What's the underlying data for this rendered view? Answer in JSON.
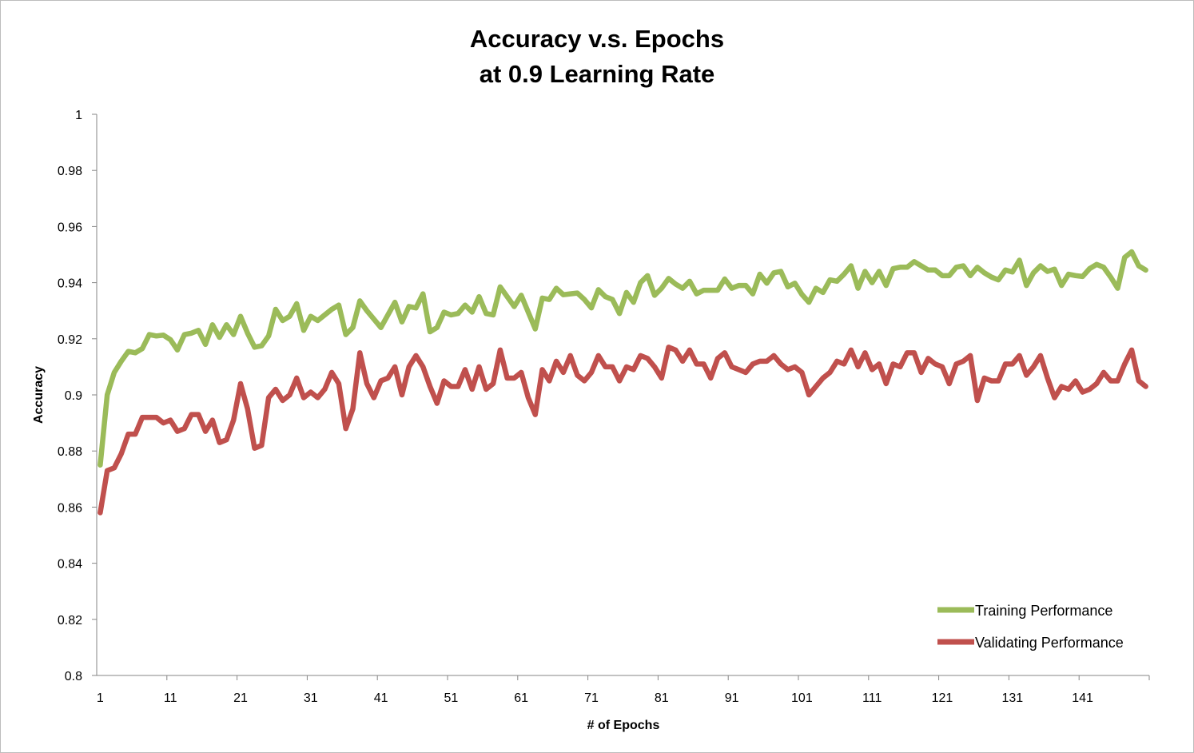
{
  "chart_data": {
    "type": "line",
    "title": [
      "Accuracy v.s. Epochs",
      "at 0.9 Learning Rate"
    ],
    "xlabel": "# of Epochs",
    "ylabel": "Accuracy",
    "xlim": [
      1,
      150
    ],
    "ylim": [
      0.8,
      1
    ],
    "x_ticks": [
      "1",
      "11",
      "21",
      "31",
      "41",
      "51",
      "61",
      "71",
      "81",
      "91",
      "101",
      "111",
      "121",
      "131",
      "141"
    ],
    "y_ticks": [
      "0.8",
      "0.82",
      "0.84",
      "0.86",
      "0.88",
      "0.9",
      "0.92",
      "0.94",
      "0.96",
      "0.98",
      "1"
    ],
    "grid": false,
    "legend_position": "bottom-right",
    "series": [
      {
        "name": "Training Performance",
        "color": "#9bbb59",
        "values": [
          0.875,
          0.9,
          0.908,
          0.912,
          0.9155,
          0.915,
          0.9165,
          0.9215,
          0.921,
          0.9213,
          0.9197,
          0.916,
          0.9215,
          0.922,
          0.923,
          0.918,
          0.925,
          0.9205,
          0.925,
          0.9215,
          0.928,
          0.922,
          0.917,
          0.9175,
          0.921,
          0.9305,
          0.9265,
          0.928,
          0.9325,
          0.923,
          0.928,
          0.9265,
          0.9285,
          0.9305,
          0.932,
          0.9215,
          0.924,
          0.9335,
          0.93,
          0.927,
          0.924,
          0.9285,
          0.933,
          0.926,
          0.9315,
          0.931,
          0.936,
          0.9225,
          0.924,
          0.9295,
          0.9285,
          0.929,
          0.932,
          0.9295,
          0.935,
          0.929,
          0.9285,
          0.9385,
          0.935,
          0.9315,
          0.9355,
          0.9295,
          0.9235,
          0.9345,
          0.934,
          0.938,
          0.9357,
          0.936,
          0.9363,
          0.934,
          0.931,
          0.9375,
          0.935,
          0.934,
          0.929,
          0.9365,
          0.933,
          0.94,
          0.9425,
          0.9355,
          0.938,
          0.9415,
          0.9395,
          0.938,
          0.9405,
          0.936,
          0.9373,
          0.9373,
          0.9373,
          0.9413,
          0.938,
          0.939,
          0.939,
          0.936,
          0.943,
          0.9398,
          0.9435,
          0.944,
          0.9385,
          0.9398,
          0.9358,
          0.933,
          0.938,
          0.9365,
          0.941,
          0.9405,
          0.943,
          0.946,
          0.938,
          0.944,
          0.94,
          0.944,
          0.939,
          0.945,
          0.9455,
          0.9455,
          0.9475,
          0.946,
          0.9445,
          0.9445,
          0.9425,
          0.9425,
          0.9455,
          0.946,
          0.9425,
          0.9455,
          0.9435,
          0.942,
          0.941,
          0.9445,
          0.9438,
          0.948,
          0.939,
          0.9435,
          0.946,
          0.944,
          0.9448,
          0.939,
          0.943,
          0.9425,
          0.9422,
          0.945,
          0.9465,
          0.9455,
          0.942,
          0.938,
          0.949,
          0.951,
          0.946,
          0.9445
        ]
      },
      {
        "name": "Validating Performance",
        "color": "#c0504d",
        "values": [
          0.858,
          0.873,
          0.874,
          0.879,
          0.886,
          0.886,
          0.892,
          0.892,
          0.892,
          0.89,
          0.891,
          0.887,
          0.888,
          0.893,
          0.893,
          0.887,
          0.891,
          0.883,
          0.884,
          0.891,
          0.904,
          0.895,
          0.881,
          0.882,
          0.899,
          0.902,
          0.898,
          0.9,
          0.906,
          0.899,
          0.901,
          0.899,
          0.902,
          0.908,
          0.904,
          0.888,
          0.895,
          0.915,
          0.904,
          0.899,
          0.905,
          0.906,
          0.91,
          0.9,
          0.91,
          0.914,
          0.91,
          0.903,
          0.897,
          0.905,
          0.903,
          0.903,
          0.909,
          0.902,
          0.91,
          0.902,
          0.904,
          0.916,
          0.906,
          0.906,
          0.908,
          0.899,
          0.893,
          0.909,
          0.905,
          0.912,
          0.908,
          0.914,
          0.907,
          0.905,
          0.908,
          0.914,
          0.91,
          0.91,
          0.905,
          0.91,
          0.909,
          0.914,
          0.913,
          0.91,
          0.906,
          0.917,
          0.916,
          0.912,
          0.916,
          0.911,
          0.911,
          0.906,
          0.913,
          0.915,
          0.91,
          0.909,
          0.908,
          0.911,
          0.912,
          0.912,
          0.914,
          0.911,
          0.909,
          0.91,
          0.908,
          0.9,
          0.903,
          0.906,
          0.908,
          0.912,
          0.911,
          0.916,
          0.91,
          0.915,
          0.909,
          0.911,
          0.904,
          0.911,
          0.91,
          0.915,
          0.915,
          0.908,
          0.913,
          0.911,
          0.91,
          0.904,
          0.911,
          0.912,
          0.914,
          0.898,
          0.906,
          0.905,
          0.905,
          0.911,
          0.911,
          0.914,
          0.907,
          0.91,
          0.914,
          0.906,
          0.899,
          0.903,
          0.902,
          0.905,
          0.901,
          0.902,
          0.904,
          0.908,
          0.905,
          0.905,
          0.911,
          0.916,
          0.905,
          0.903
        ]
      }
    ]
  }
}
